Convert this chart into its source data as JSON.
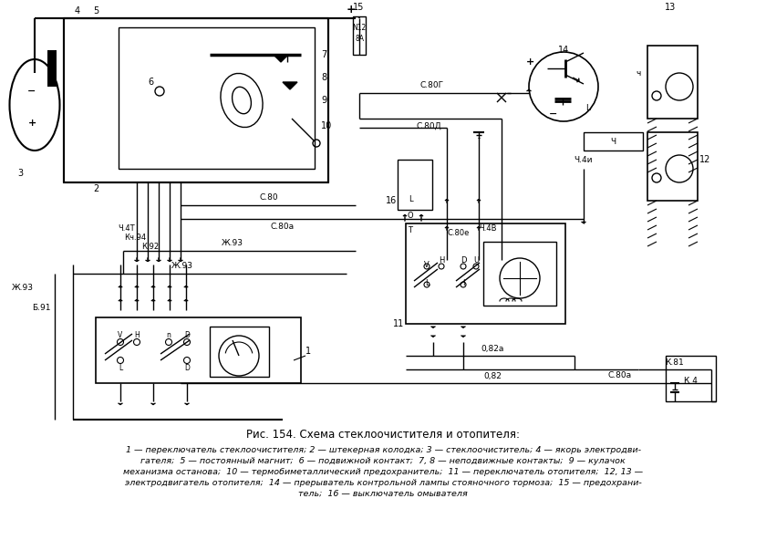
{
  "title": "Рис. 154. Схема стеклоочистителя и отопителя:",
  "cap1": "1 — переключатель стеклоочистителя; 2 — штекерная колодка; 3 — стеклоочиститель; 4 — якорь электродви-",
  "cap2": "гателя;  5 — постоянный магнит;  6 — подвижной контакт;  7, 8 — неподвижные контакты;  9 — кулачок",
  "cap3": "механизма останова;  10 — термобиметаллический предохранитель;  11 — переключатель отопителя;  12, 13 —",
  "cap4": "электродвигатель отопителя;  14 — прерыватель контрольной лампы стояночного тормоза;  15 — предохрани-",
  "cap5": "тель;  16 — выключатель омывателя",
  "bg": "#ffffff",
  "lc": "#000000"
}
